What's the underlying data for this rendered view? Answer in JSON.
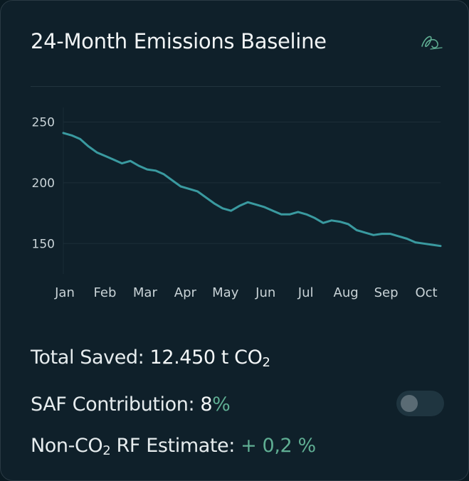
{
  "card": {
    "title": "24-Month Emissions Baseline",
    "logo_icon": "signature-logo-icon"
  },
  "colors": {
    "background": "#0f202a",
    "line": "#3a9aa0",
    "accent_green": "#5fae93",
    "grid": "#1c2e38"
  },
  "chart_data": {
    "type": "line",
    "title": "",
    "xlabel": "",
    "ylabel": "",
    "x_ticks": [
      "Jan",
      "Feb",
      "Mar",
      "Apr",
      "May",
      "Jun",
      "Jul",
      "Aug",
      "Sep",
      "Oct"
    ],
    "y_ticks": [
      150,
      200,
      250
    ],
    "ylim": [
      125,
      262
    ],
    "grid": "horizontal",
    "series": [
      {
        "values": [
          241,
          239,
          236,
          230,
          225,
          222,
          219,
          216,
          218,
          214,
          211,
          210,
          207,
          202,
          197,
          195,
          193,
          188,
          183,
          179,
          177,
          181,
          184,
          182,
          180,
          177,
          174,
          174,
          176,
          174,
          171,
          167,
          169,
          168,
          166,
          161,
          159,
          157,
          158,
          158,
          156,
          154,
          151,
          150,
          149,
          148
        ]
      }
    ]
  },
  "stats": {
    "total_label": "Total Saved:",
    "total_value": "12.450 t CO",
    "total_sub": "2",
    "saf_label": "SAF Contribution:",
    "saf_value_num": "8",
    "saf_value_pct": "%",
    "saf_toggle_on": false,
    "rf_label_pre": "Non-CO",
    "rf_label_sub": "2",
    "rf_label_post": " RF Estimate:",
    "rf_value": "+ 0,2 %"
  }
}
